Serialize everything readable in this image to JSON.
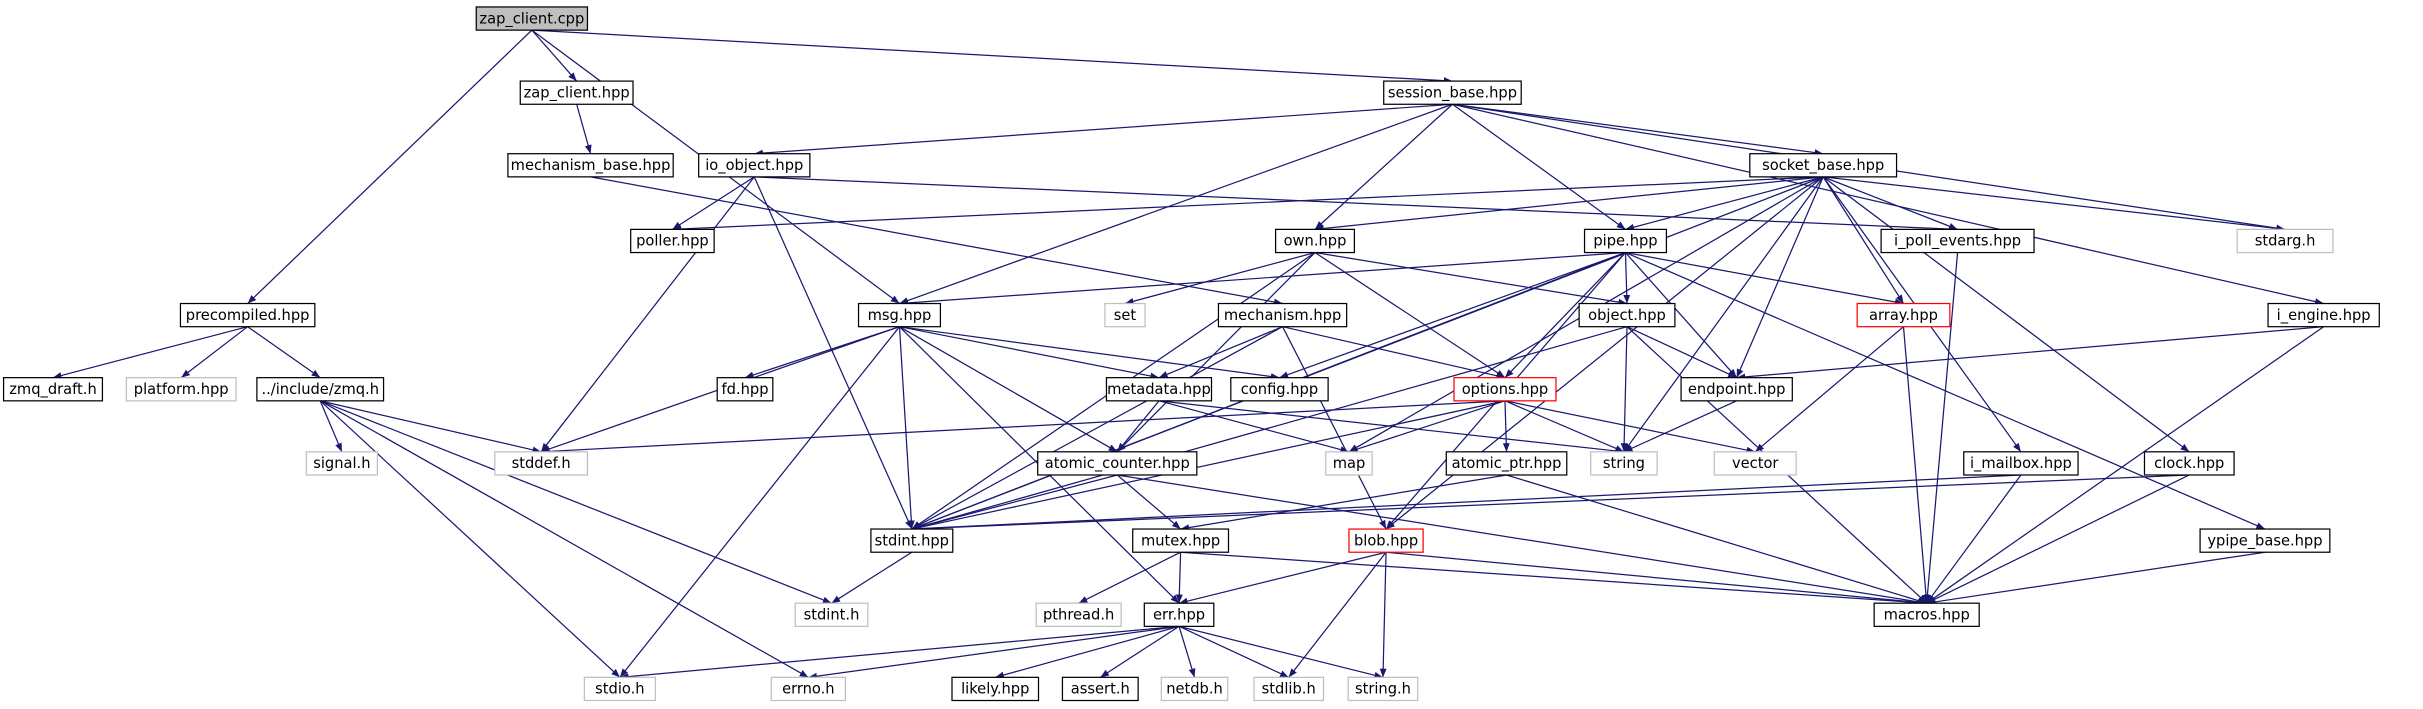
{
  "nodes": [
    {
      "label": "zap_client.cpp"
    },
    {
      "label": "zap_client.hpp"
    },
    {
      "label": "session_base.hpp"
    },
    {
      "label": "mechanism_base.hpp"
    },
    {
      "label": "io_object.hpp"
    },
    {
      "label": "socket_base.hpp"
    },
    {
      "label": "precompiled.hpp"
    },
    {
      "label": "poller.hpp"
    },
    {
      "label": "own.hpp"
    },
    {
      "label": "pipe.hpp"
    },
    {
      "label": "i_poll_events.hpp"
    },
    {
      "label": "stdarg.h"
    },
    {
      "label": "msg.hpp"
    },
    {
      "label": "set"
    },
    {
      "label": "mechanism.hpp"
    },
    {
      "label": "object.hpp"
    },
    {
      "label": "array.hpp"
    },
    {
      "label": "i_engine.hpp"
    },
    {
      "label": "zmq_draft.h"
    },
    {
      "label": "platform.hpp"
    },
    {
      "label": "../include/zmq.h"
    },
    {
      "label": "fd.hpp"
    },
    {
      "label": "metadata.hpp"
    },
    {
      "label": "config.hpp"
    },
    {
      "label": "options.hpp"
    },
    {
      "label": "endpoint.hpp"
    },
    {
      "label": "signal.h"
    },
    {
      "label": "stddef.h"
    },
    {
      "label": "atomic_counter.hpp"
    },
    {
      "label": "map"
    },
    {
      "label": "atomic_ptr.hpp"
    },
    {
      "label": "string"
    },
    {
      "label": "vector"
    },
    {
      "label": "i_mailbox.hpp"
    },
    {
      "label": "clock.hpp"
    },
    {
      "label": "stdint.hpp"
    },
    {
      "label": "mutex.hpp"
    },
    {
      "label": "blob.hpp"
    },
    {
      "label": "ypipe_base.hpp"
    },
    {
      "label": "stdint.h"
    },
    {
      "label": "pthread.h"
    },
    {
      "label": "err.hpp"
    },
    {
      "label": "macros.hpp"
    },
    {
      "label": "stdio.h"
    },
    {
      "label": "errno.h"
    },
    {
      "label": "likely.hpp"
    },
    {
      "label": "assert.h"
    },
    {
      "label": "netdb.h"
    },
    {
      "label": "stdlib.h"
    },
    {
      "label": "string.h"
    }
  ]
}
